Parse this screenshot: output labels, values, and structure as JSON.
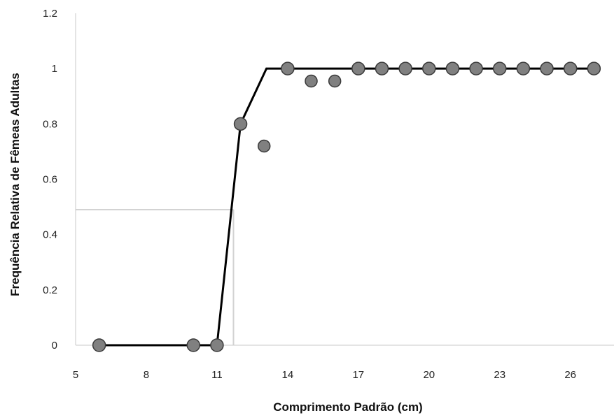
{
  "chart_data": {
    "type": "scatter",
    "xlabel": "Comprimento Padrão (cm)",
    "ylabel": "Frequência Relativa  de Fêmeas Adultas",
    "xlim": [
      5,
      28
    ],
    "ylim": [
      0,
      1.2
    ],
    "x_ticks": [
      5,
      8,
      11,
      14,
      17,
      20,
      23,
      26
    ],
    "y_ticks": [
      0,
      0.2,
      0.4,
      0.6,
      0.8,
      1,
      1.2
    ],
    "x_tick_labels": [
      "5",
      "8",
      "11",
      "14",
      "17",
      "20",
      "23",
      "26"
    ],
    "y_tick_labels": [
      "0",
      "0.2",
      "0.4",
      "0.6",
      "0.8",
      "1",
      "1.2"
    ],
    "grid": false,
    "series": [
      {
        "kind": "points",
        "color": "#808080",
        "x": [
          6,
          10,
          11,
          12,
          13,
          14,
          15,
          16,
          17,
          18,
          19,
          20,
          21,
          22,
          23,
          24,
          25,
          26,
          27
        ],
        "y": [
          0,
          0,
          0,
          0.8,
          0.72,
          1,
          0.955,
          0.955,
          1,
          1,
          1,
          1,
          1,
          1,
          1,
          1,
          1,
          1,
          1
        ]
      },
      {
        "kind": "fitted-line",
        "color": "#000000",
        "x": [
          6,
          11,
          12,
          13.1,
          27
        ],
        "y": [
          0,
          0,
          0.8,
          1,
          1
        ]
      }
    ],
    "reference_lines": {
      "color": "#d3d3d3",
      "y50": 0.49,
      "x50": 11.7
    }
  }
}
